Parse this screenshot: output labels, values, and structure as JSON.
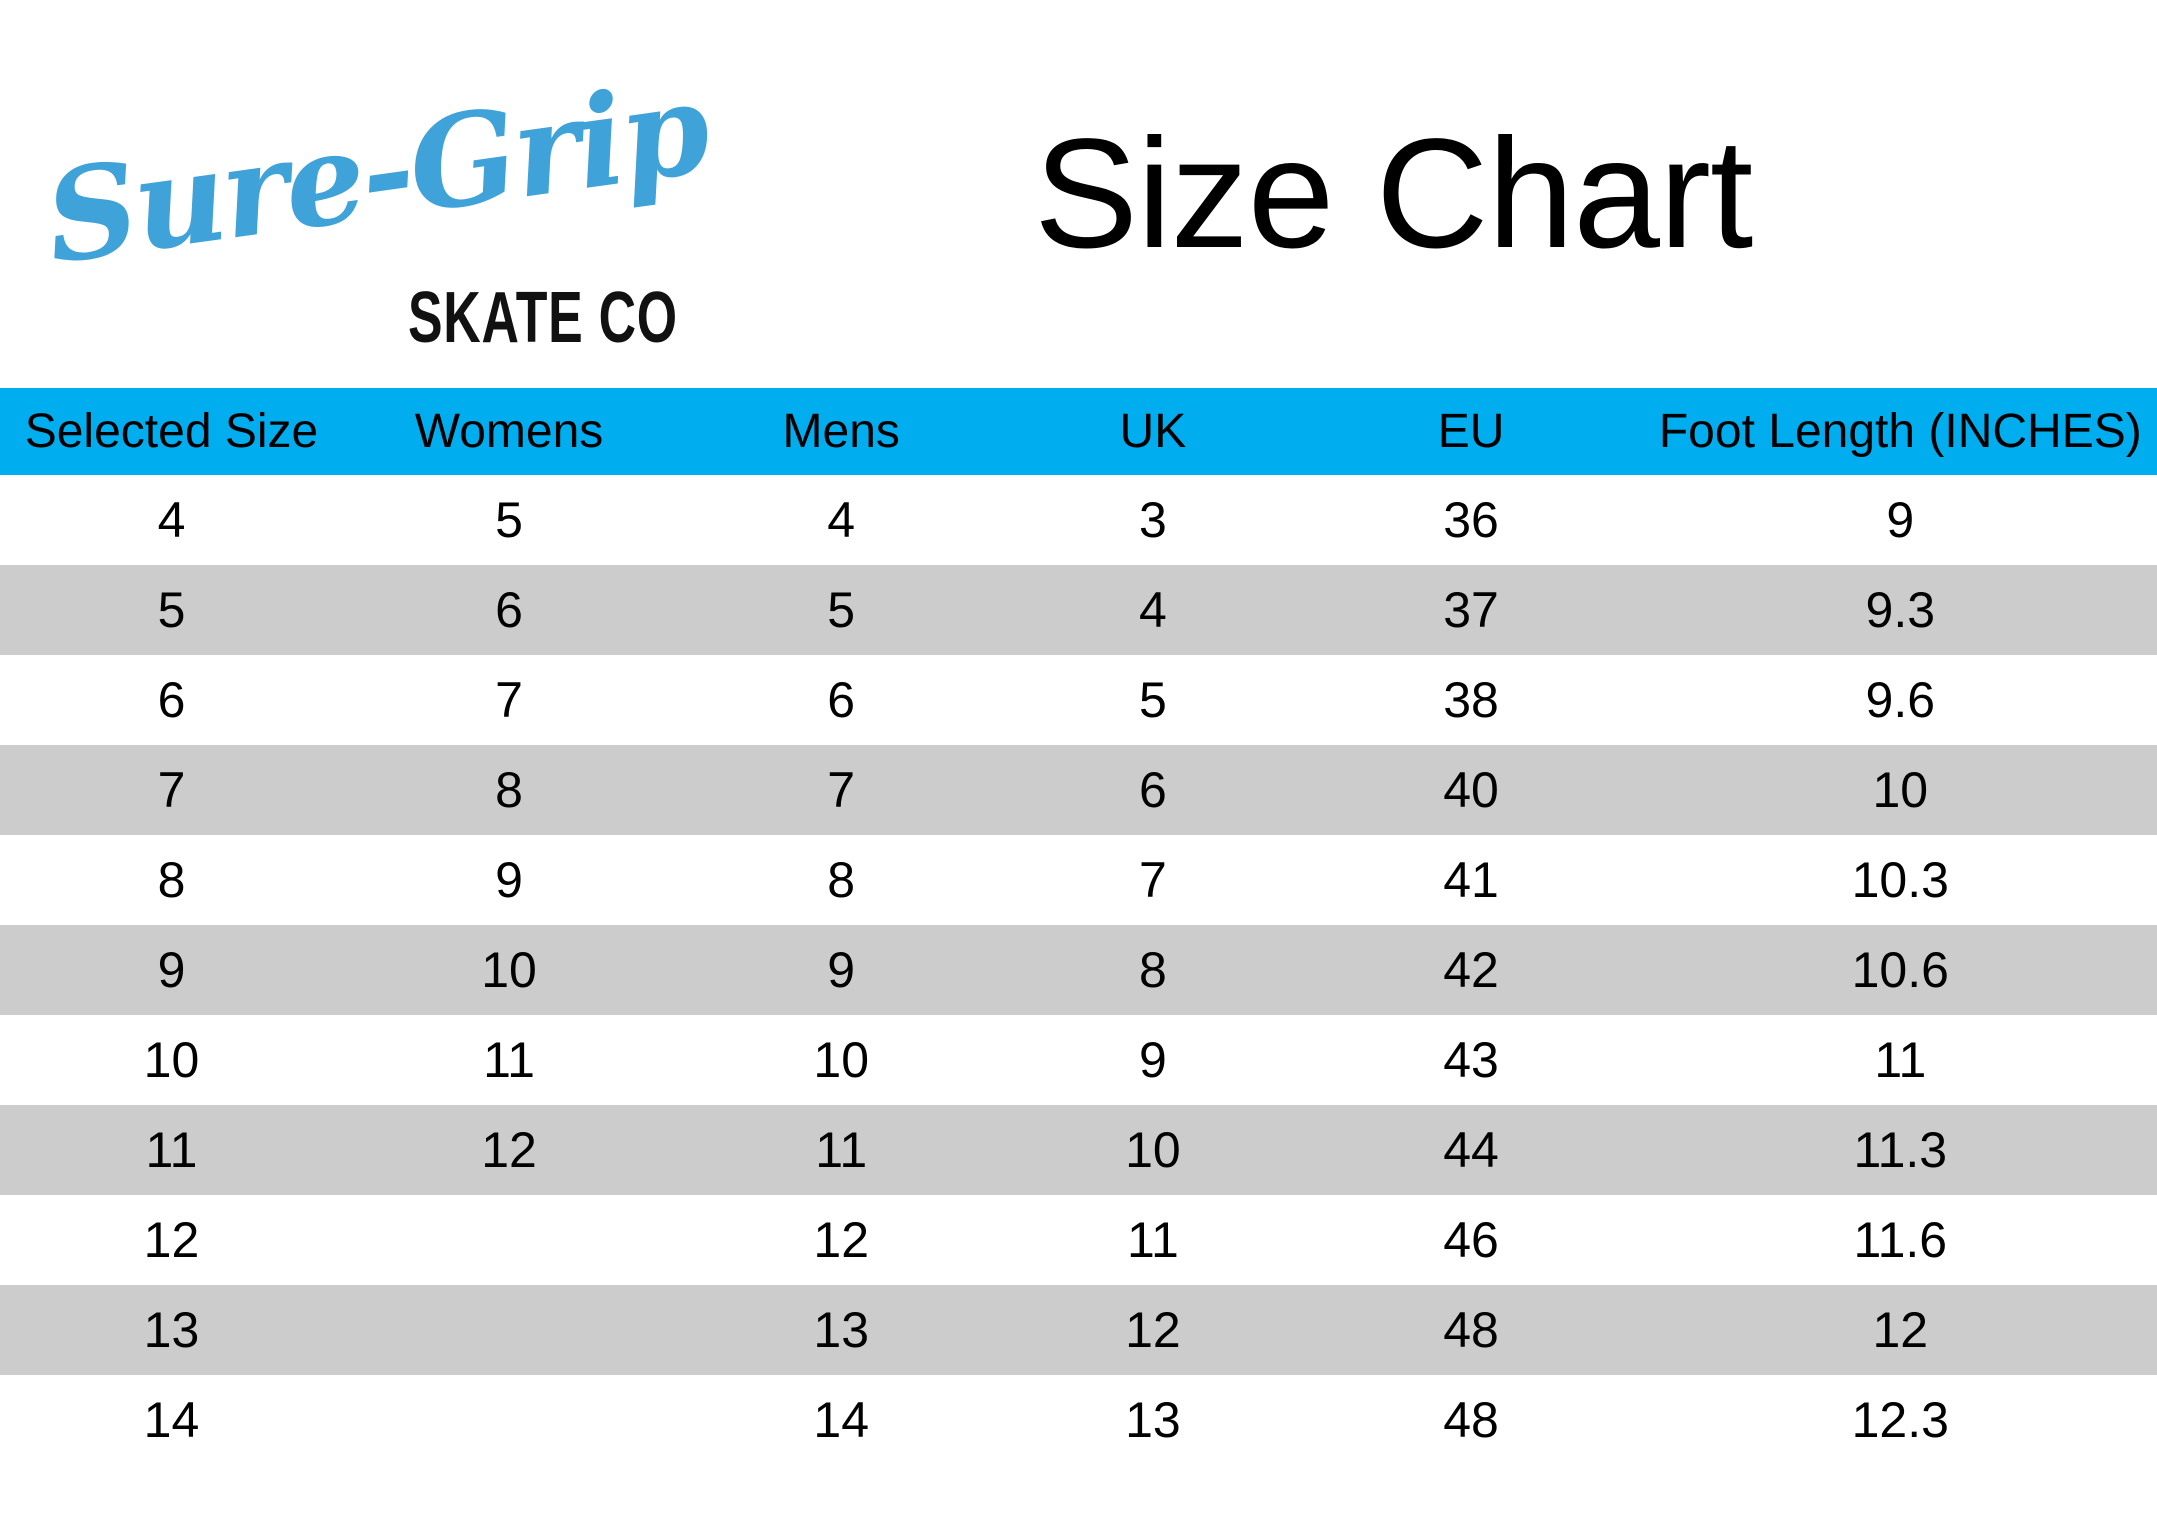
{
  "logo": {
    "script": "Sure-Grip",
    "subtitle": "SKATE CO"
  },
  "title": "Size Chart",
  "colors": {
    "header_bg": "#00aeef",
    "alt_row_bg": "#cccccc",
    "logo_blue": "#3fa2d9",
    "text": "#000000"
  },
  "chart_data": {
    "type": "table",
    "title": "Size Chart",
    "columns": [
      "Selected Size",
      "Womens",
      "Mens",
      "UK",
      "EU",
      "Foot Length (INCHES)"
    ],
    "rows": [
      [
        "4",
        "5",
        "4",
        "3",
        "36",
        "9"
      ],
      [
        "5",
        "6",
        "5",
        "4",
        "37",
        "9.3"
      ],
      [
        "6",
        "7",
        "6",
        "5",
        "38",
        "9.6"
      ],
      [
        "7",
        "8",
        "7",
        "6",
        "40",
        "10"
      ],
      [
        "8",
        "9",
        "8",
        "7",
        "41",
        "10.3"
      ],
      [
        "9",
        "10",
        "9",
        "8",
        "42",
        "10.6"
      ],
      [
        "10",
        "11",
        "10",
        "9",
        "43",
        "11"
      ],
      [
        "11",
        "12",
        "11",
        "10",
        "44",
        "11.3"
      ],
      [
        "12",
        "",
        "12",
        "11",
        "46",
        "11.6"
      ],
      [
        "13",
        "",
        "13",
        "12",
        "48",
        "12"
      ],
      [
        "14",
        "",
        "14",
        "13",
        "48",
        "12.3"
      ]
    ],
    "layout": {
      "striped": true,
      "first_data_row_bg": "white",
      "grid_lines": false
    }
  }
}
